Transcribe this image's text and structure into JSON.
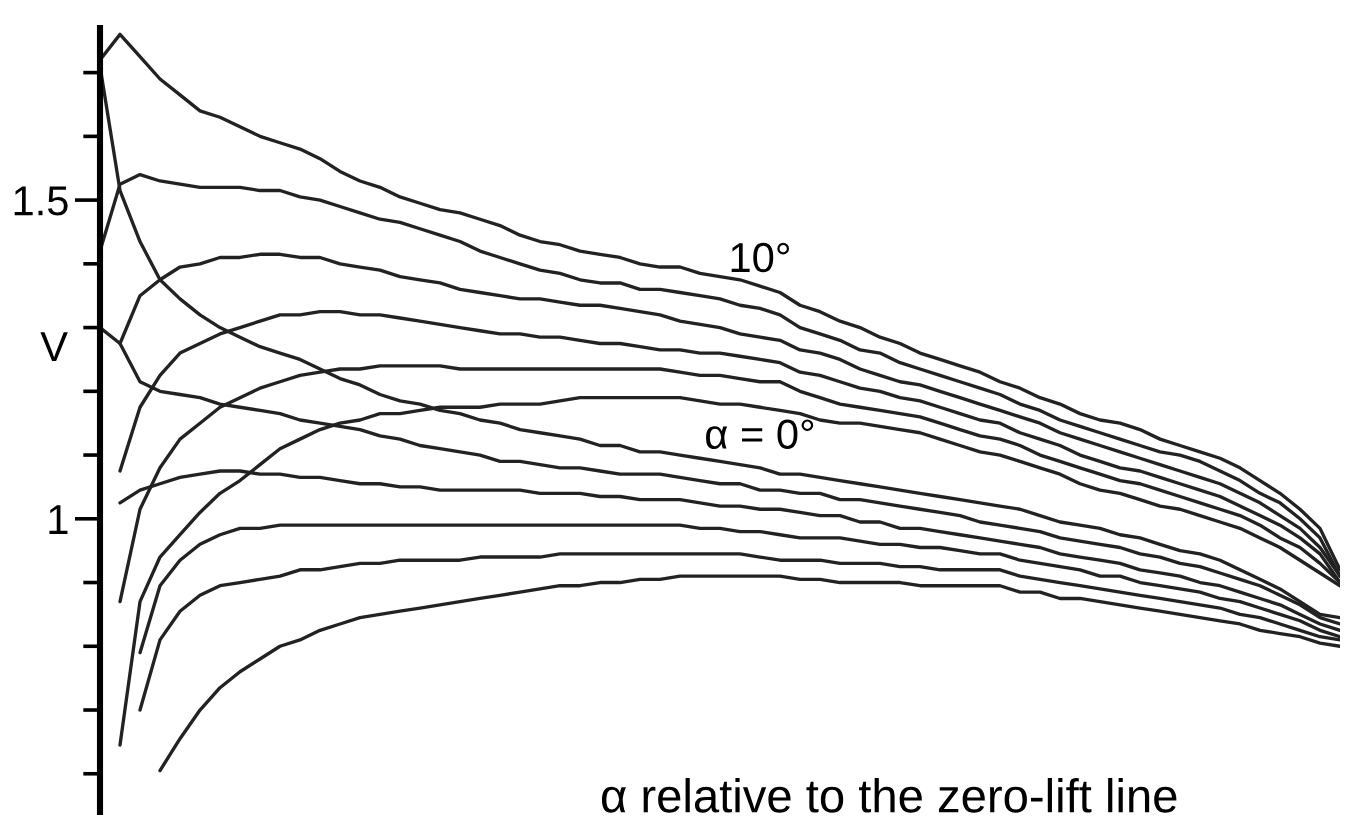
{
  "chart_data": {
    "type": "line",
    "ylabel": "V",
    "annotations": [
      "α relative to the zero-lift line"
    ],
    "categories": [
      null,
      null,
      null,
      null,
      null,
      null,
      null,
      null,
      null,
      null,
      null,
      null,
      null,
      null,
      null,
      null,
      null,
      null,
      null,
      null,
      null,
      null,
      null,
      null,
      null,
      null,
      null,
      null,
      null,
      null,
      null,
      null,
      null,
      null,
      null,
      null,
      null,
      null,
      null,
      null,
      null,
      null,
      null,
      null,
      null,
      null,
      null,
      null,
      null,
      null,
      null,
      null,
      null,
      null,
      null,
      null,
      null,
      null,
      null,
      null,
      null,
      null,
      null
    ],
    "tick_labels": "y",
    "ylim": [
      0.54,
      1.77
    ],
    "yticks": [
      {
        "value": 0.6,
        "label": null
      },
      {
        "value": 0.7,
        "label": null
      },
      {
        "value": 0.8,
        "label": null
      },
      {
        "value": 0.9,
        "label": null
      },
      1,
      {
        "value": 1.1,
        "label": null
      },
      {
        "value": 1.2,
        "label": null
      },
      {
        "value": 1.3,
        "label": null
      },
      {
        "value": 1.4,
        "label": null
      },
      1.5,
      {
        "value": 1.6,
        "label": null
      },
      {
        "value": 1.7,
        "label": null
      }
    ],
    "series": [
      {
        "name": "10°",
        "color": "#222222",
        "values": [
          1.72,
          1.76,
          1.725,
          1.69,
          1.665,
          1.64,
          1.63,
          1.615,
          1.6,
          1.59,
          1.58,
          1.565,
          1.545,
          1.53,
          1.52,
          1.505,
          1.495,
          1.485,
          1.48,
          1.47,
          1.46,
          1.445,
          1.435,
          1.43,
          1.42,
          1.415,
          1.41,
          1.4,
          1.395,
          1.395,
          1.385,
          1.38,
          1.375,
          1.365,
          1.355,
          1.335,
          1.325,
          1.31,
          1.3,
          1.285,
          1.275,
          1.26,
          1.25,
          1.24,
          1.23,
          1.215,
          1.205,
          1.19,
          1.18,
          1.165,
          1.155,
          1.15,
          1.14,
          1.125,
          1.115,
          1.105,
          1.095,
          1.08,
          1.06,
          1.04,
          1.015,
          0.985,
          0.92
        ]
      },
      {
        "color": "#222222",
        "values": [
          1.42,
          1.525,
          1.54,
          1.53,
          1.525,
          1.52,
          1.52,
          1.52,
          1.515,
          1.515,
          1.505,
          1.5,
          1.49,
          1.48,
          1.47,
          1.465,
          1.455,
          1.445,
          1.435,
          1.42,
          1.41,
          1.4,
          1.39,
          1.385,
          1.375,
          1.37,
          1.37,
          1.36,
          1.36,
          1.355,
          1.35,
          1.345,
          1.335,
          1.33,
          1.32,
          1.3,
          1.29,
          1.28,
          1.265,
          1.26,
          1.245,
          1.235,
          1.225,
          1.215,
          1.205,
          1.195,
          1.18,
          1.17,
          1.155,
          1.145,
          1.135,
          1.125,
          1.115,
          1.105,
          1.1,
          1.09,
          1.075,
          1.06,
          1.04,
          1.025,
          1.0,
          0.97,
          0.91
        ]
      },
      {
        "color": "#222222",
        "values": [
          null,
          1.275,
          1.35,
          1.375,
          1.395,
          1.4,
          1.41,
          1.41,
          1.415,
          1.415,
          1.41,
          1.41,
          1.4,
          1.395,
          1.39,
          1.38,
          1.375,
          1.37,
          1.36,
          1.355,
          1.35,
          1.345,
          1.345,
          1.34,
          1.335,
          1.335,
          1.33,
          1.325,
          1.32,
          1.31,
          1.305,
          1.3,
          1.29,
          1.285,
          1.28,
          1.265,
          1.26,
          1.25,
          1.235,
          1.225,
          1.215,
          1.21,
          1.2,
          1.19,
          1.18,
          1.17,
          1.16,
          1.15,
          1.135,
          1.125,
          1.115,
          1.105,
          1.095,
          1.085,
          1.075,
          1.065,
          1.055,
          1.04,
          1.025,
          1.005,
          0.985,
          0.955,
          0.91
        ]
      },
      {
        "color": "#222222",
        "values": [
          null,
          1.075,
          1.175,
          1.225,
          1.26,
          1.275,
          1.29,
          1.3,
          1.31,
          1.32,
          1.32,
          1.325,
          1.325,
          1.32,
          1.32,
          1.315,
          1.31,
          1.305,
          1.3,
          1.295,
          1.29,
          1.29,
          1.285,
          1.285,
          1.28,
          1.275,
          1.275,
          1.27,
          1.265,
          1.265,
          1.26,
          1.26,
          1.255,
          1.25,
          1.245,
          1.23,
          1.225,
          1.215,
          1.205,
          1.2,
          1.19,
          1.185,
          1.175,
          1.165,
          1.155,
          1.15,
          1.135,
          1.125,
          1.115,
          1.1,
          1.09,
          1.08,
          1.075,
          1.065,
          1.055,
          1.045,
          1.035,
          1.02,
          1.005,
          0.99,
          0.97,
          0.945,
          0.9
        ]
      },
      {
        "color": "#222222",
        "values": [
          null,
          0.87,
          1.015,
          1.08,
          1.125,
          1.15,
          1.175,
          1.19,
          1.205,
          1.215,
          1.225,
          1.23,
          1.235,
          1.235,
          1.24,
          1.24,
          1.24,
          1.24,
          1.235,
          1.235,
          1.235,
          1.235,
          1.235,
          1.235,
          1.235,
          1.235,
          1.235,
          1.235,
          1.235,
          1.23,
          1.225,
          1.225,
          1.22,
          1.215,
          1.215,
          1.2,
          1.19,
          1.18,
          1.175,
          1.17,
          1.165,
          1.16,
          1.15,
          1.14,
          1.13,
          1.125,
          1.115,
          1.1,
          1.09,
          1.08,
          1.07,
          1.06,
          1.055,
          1.045,
          1.035,
          1.025,
          1.015,
          1.005,
          0.99,
          0.97,
          0.955,
          0.93,
          0.9
        ]
      },
      {
        "name": "α = 0°",
        "color": "#222222",
        "values": [
          null,
          0.645,
          0.87,
          0.94,
          0.975,
          1.01,
          1.04,
          1.06,
          1.085,
          1.11,
          1.125,
          1.14,
          1.15,
          1.155,
          1.165,
          1.165,
          1.17,
          1.175,
          1.175,
          1.175,
          1.18,
          1.18,
          1.18,
          1.185,
          1.19,
          1.19,
          1.19,
          1.19,
          1.19,
          1.19,
          1.185,
          1.18,
          1.18,
          1.175,
          1.17,
          1.165,
          1.155,
          1.15,
          1.15,
          1.145,
          1.14,
          1.135,
          1.125,
          1.115,
          1.105,
          1.1,
          1.09,
          1.08,
          1.07,
          1.055,
          1.045,
          1.04,
          1.03,
          1.02,
          1.015,
          1.005,
          0.995,
          0.985,
          0.97,
          0.955,
          0.935,
          0.915,
          0.895
        ]
      },
      {
        "color": "#222222",
        "values": [
          1.71,
          1.515,
          1.435,
          1.375,
          1.345,
          1.32,
          1.3,
          1.285,
          1.27,
          1.26,
          1.25,
          1.235,
          1.22,
          1.21,
          1.195,
          1.185,
          1.18,
          1.17,
          1.165,
          1.155,
          1.15,
          1.14,
          1.135,
          1.13,
          1.125,
          1.115,
          1.115,
          1.105,
          1.105,
          1.1,
          1.095,
          1.09,
          1.085,
          1.08,
          1.07,
          1.07,
          1.065,
          1.06,
          1.055,
          1.05,
          1.045,
          1.04,
          1.035,
          1.03,
          1.025,
          1.02,
          1.015,
          1.005,
          0.995,
          0.99,
          0.985,
          0.975,
          0.97,
          0.96,
          0.95,
          0.945,
          0.935,
          0.92,
          0.905,
          0.89,
          0.87,
          0.85,
          0.845
        ]
      },
      {
        "color": "#222222",
        "values": [
          1.3,
          1.275,
          1.215,
          1.2,
          1.195,
          1.19,
          1.18,
          1.175,
          1.17,
          1.165,
          1.155,
          1.15,
          1.145,
          1.14,
          1.13,
          1.125,
          1.115,
          1.11,
          1.105,
          1.1,
          1.09,
          1.09,
          1.085,
          1.08,
          1.08,
          1.075,
          1.07,
          1.07,
          1.07,
          1.065,
          1.06,
          1.055,
          1.055,
          1.045,
          1.045,
          1.04,
          1.04,
          1.03,
          1.03,
          1.025,
          1.02,
          1.015,
          1.01,
          1.005,
          0.995,
          0.99,
          0.985,
          0.98,
          0.97,
          0.965,
          0.96,
          0.955,
          0.945,
          0.94,
          0.93,
          0.925,
          0.915,
          0.905,
          0.895,
          0.88,
          0.865,
          0.845,
          0.835
        ]
      },
      {
        "color": "#222222",
        "values": [
          null,
          1.025,
          1.045,
          1.055,
          1.065,
          1.07,
          1.075,
          1.075,
          1.07,
          1.07,
          1.065,
          1.065,
          1.06,
          1.055,
          1.055,
          1.05,
          1.05,
          1.045,
          1.045,
          1.045,
          1.045,
          1.045,
          1.04,
          1.04,
          1.04,
          1.035,
          1.035,
          1.03,
          1.03,
          1.03,
          1.025,
          1.02,
          1.02,
          1.015,
          1.015,
          1.01,
          1.005,
          1.005,
          0.995,
          0.995,
          0.985,
          0.985,
          0.98,
          0.975,
          0.97,
          0.965,
          0.96,
          0.955,
          0.945,
          0.94,
          0.935,
          0.93,
          0.92,
          0.915,
          0.91,
          0.9,
          0.895,
          0.885,
          0.875,
          0.865,
          0.85,
          0.835,
          0.825
        ]
      },
      {
        "color": "#222222",
        "values": [
          null,
          null,
          0.79,
          0.895,
          0.935,
          0.96,
          0.975,
          0.985,
          0.985,
          0.99,
          0.99,
          0.99,
          0.99,
          0.99,
          0.99,
          0.99,
          0.99,
          0.99,
          0.99,
          0.99,
          0.99,
          0.99,
          0.99,
          0.99,
          0.99,
          0.99,
          0.99,
          0.99,
          0.99,
          0.99,
          0.985,
          0.985,
          0.98,
          0.98,
          0.975,
          0.97,
          0.97,
          0.97,
          0.965,
          0.96,
          0.96,
          0.955,
          0.955,
          0.95,
          0.945,
          0.945,
          0.935,
          0.93,
          0.925,
          0.92,
          0.91,
          0.91,
          0.9,
          0.895,
          0.89,
          0.885,
          0.875,
          0.87,
          0.86,
          0.85,
          0.84,
          0.825,
          0.815
        ]
      },
      {
        "color": "#222222",
        "values": [
          null,
          null,
          0.7,
          0.81,
          0.855,
          0.88,
          0.895,
          0.9,
          0.905,
          0.91,
          0.92,
          0.92,
          0.925,
          0.93,
          0.93,
          0.935,
          0.935,
          0.935,
          0.935,
          0.94,
          0.94,
          0.94,
          0.94,
          0.945,
          0.945,
          0.945,
          0.945,
          0.945,
          0.945,
          0.945,
          0.945,
          0.945,
          0.945,
          0.94,
          0.935,
          0.935,
          0.935,
          0.93,
          0.93,
          0.93,
          0.925,
          0.925,
          0.92,
          0.92,
          0.92,
          0.92,
          0.91,
          0.905,
          0.9,
          0.895,
          0.89,
          0.885,
          0.88,
          0.875,
          0.87,
          0.865,
          0.86,
          0.85,
          0.845,
          0.835,
          0.825,
          0.815,
          0.81
        ]
      },
      {
        "color": "#222222",
        "values": [
          null,
          null,
          null,
          0.605,
          0.655,
          0.7,
          0.735,
          0.76,
          0.78,
          0.8,
          0.81,
          0.825,
          0.835,
          0.845,
          0.85,
          0.855,
          0.86,
          0.865,
          0.87,
          0.875,
          0.88,
          0.885,
          0.89,
          0.895,
          0.895,
          0.9,
          0.9,
          0.905,
          0.905,
          0.91,
          0.91,
          0.91,
          0.91,
          0.91,
          0.91,
          0.905,
          0.905,
          0.9,
          0.9,
          0.9,
          0.9,
          0.895,
          0.895,
          0.895,
          0.895,
          0.895,
          0.885,
          0.885,
          0.875,
          0.875,
          0.87,
          0.865,
          0.86,
          0.855,
          0.85,
          0.845,
          0.84,
          0.835,
          0.825,
          0.82,
          0.815,
          0.805,
          0.8
        ]
      }
    ]
  }
}
